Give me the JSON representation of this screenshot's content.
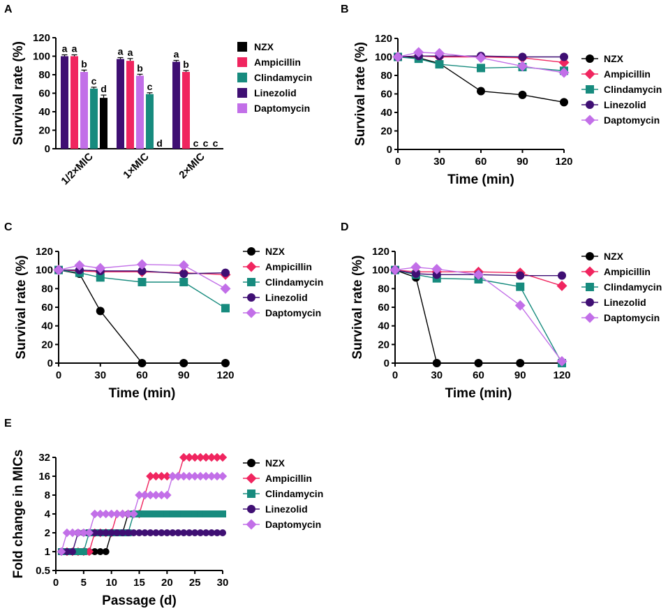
{
  "colors": {
    "NZX": "#000000",
    "Ampicillin": "#f0255f",
    "Clindamycin": "#178b7e",
    "Linezolid": "#3f0f73",
    "Daptomycin": "#c26fe8"
  },
  "chart_data": [
    {
      "id": "A",
      "panel_label": "A",
      "type": "bar",
      "title": "",
      "xlabel": "",
      "ylabel": "Survival rate (%)",
      "ylim": [
        0,
        120
      ],
      "yticks": [
        0,
        20,
        40,
        60,
        80,
        100,
        120
      ],
      "categories": [
        "1/2×MIC",
        "1×MIC",
        "2×MIC"
      ],
      "series": [
        {
          "name": "Linezolid",
          "values": [
            100,
            97,
            94
          ],
          "errors": [
            1.5,
            1.5,
            1.5
          ],
          "letters": [
            "a",
            "a",
            "a"
          ]
        },
        {
          "name": "Ampicillin",
          "values": [
            100,
            95,
            83
          ],
          "errors": [
            1.5,
            2.5,
            1.5
          ],
          "letters": [
            "a",
            "a",
            "b"
          ]
        },
        {
          "name": "Daptomycin",
          "values": [
            83,
            79,
            0
          ],
          "errors": [
            2,
            1.5,
            0
          ],
          "letters": [
            "b",
            "b",
            "c"
          ]
        },
        {
          "name": "Clindamycin",
          "values": [
            65,
            59,
            0
          ],
          "errors": [
            1.5,
            1.5,
            0
          ],
          "letters": [
            "c",
            "c",
            "c"
          ]
        },
        {
          "name": "NZX",
          "values": [
            55,
            0,
            0
          ],
          "errors": [
            3,
            0,
            0
          ],
          "letters": [
            "d",
            "d",
            "c"
          ]
        }
      ],
      "legend": [
        "NZX",
        "Ampicillin",
        "Clindamycin",
        "Linezolid",
        "Daptomycin"
      ]
    },
    {
      "id": "B",
      "panel_label": "B",
      "type": "line",
      "xlabel": "Time (min)",
      "ylabel": "Survival rate (%)",
      "xlim": [
        0,
        120
      ],
      "ylim": [
        0,
        120
      ],
      "xticks": [
        0,
        30,
        60,
        90,
        120
      ],
      "yticks": [
        0,
        20,
        40,
        60,
        80,
        100,
        120
      ],
      "x": [
        0,
        15,
        30,
        60,
        90,
        120
      ],
      "series": [
        {
          "name": "NZX",
          "values": [
            100,
            99,
            93,
            63,
            59,
            51
          ]
        },
        {
          "name": "Ampicillin",
          "values": [
            100,
            101,
            100,
            100,
            99,
            94
          ]
        },
        {
          "name": "Clindamycin",
          "values": [
            100,
            98,
            92,
            88,
            89,
            85
          ]
        },
        {
          "name": "Linezolid",
          "values": [
            100,
            101,
            101,
            101,
            100,
            100
          ]
        },
        {
          "name": "Daptomycin",
          "values": [
            100,
            105,
            104,
            99,
            90,
            83
          ]
        }
      ]
    },
    {
      "id": "C",
      "panel_label": "C",
      "type": "line",
      "xlabel": "Time (min)",
      "ylabel": "Survival rate (%)",
      "xlim": [
        0,
        120
      ],
      "ylim": [
        0,
        120
      ],
      "xticks": [
        0,
        30,
        60,
        90,
        120
      ],
      "yticks": [
        0,
        20,
        40,
        60,
        80,
        100,
        120
      ],
      "x": [
        0,
        15,
        30,
        60,
        90,
        120
      ],
      "series": [
        {
          "name": "NZX",
          "values": [
            100,
            96,
            56,
            0,
            0,
            0
          ]
        },
        {
          "name": "Ampicillin",
          "values": [
            100,
            99,
            98,
            98,
            97,
            95
          ]
        },
        {
          "name": "Clindamycin",
          "values": [
            100,
            97,
            92,
            87,
            87,
            59
          ]
        },
        {
          "name": "Linezolid",
          "values": [
            100,
            100,
            99,
            99,
            96,
            97
          ]
        },
        {
          "name": "Daptomycin",
          "values": [
            100,
            105,
            102,
            106,
            105,
            80
          ]
        }
      ]
    },
    {
      "id": "D",
      "panel_label": "D",
      "type": "line",
      "xlabel": "Time (min)",
      "ylabel": "Survival rate (%)",
      "xlim": [
        0,
        120
      ],
      "ylim": [
        0,
        120
      ],
      "xticks": [
        0,
        30,
        60,
        90,
        120
      ],
      "yticks": [
        0,
        20,
        40,
        60,
        80,
        100,
        120
      ],
      "x": [
        0,
        15,
        30,
        60,
        90,
        120
      ],
      "series": [
        {
          "name": "NZX",
          "values": [
            100,
            92,
            0,
            0,
            0,
            0
          ]
        },
        {
          "name": "Ampicillin",
          "values": [
            100,
            98,
            98,
            98,
            97,
            83
          ]
        },
        {
          "name": "Clindamycin",
          "values": [
            100,
            95,
            91,
            90,
            82,
            0
          ]
        },
        {
          "name": "Linezolid",
          "values": [
            100,
            96,
            95,
            95,
            94,
            94
          ]
        },
        {
          "name": "Daptomycin",
          "values": [
            100,
            103,
            101,
            95,
            62,
            2
          ]
        }
      ]
    },
    {
      "id": "E",
      "panel_label": "E",
      "type": "line",
      "yscale": "log2",
      "xlabel": "Passage (d)",
      "ylabel": "Fold change in MICs",
      "xlim": [
        0,
        30
      ],
      "ylim": [
        0.5,
        32
      ],
      "xticks": [
        0,
        5,
        10,
        15,
        20,
        25,
        30
      ],
      "yticks": [
        0.5,
        1,
        2,
        4,
        8,
        16,
        32
      ],
      "x": [
        1,
        2,
        3,
        4,
        5,
        6,
        7,
        8,
        9,
        10,
        11,
        12,
        13,
        14,
        15,
        16,
        17,
        18,
        19,
        20,
        21,
        22,
        23,
        24,
        25,
        26,
        27,
        28,
        29,
        30
      ],
      "series": [
        {
          "name": "NZX",
          "values": [
            1,
            1,
            1,
            1,
            1,
            1,
            1,
            1,
            1,
            2,
            2,
            2,
            4,
            4,
            4,
            4,
            4,
            4,
            4,
            4,
            4,
            4,
            4,
            4,
            4,
            4,
            4,
            4,
            4,
            4
          ]
        },
        {
          "name": "Ampicillin",
          "values": [
            1,
            1,
            1,
            1,
            1,
            1,
            2,
            2,
            2,
            2,
            4,
            4,
            4,
            4,
            4,
            8,
            16,
            16,
            16,
            16,
            16,
            16,
            32,
            32,
            32,
            32,
            32,
            32,
            32,
            32
          ]
        },
        {
          "name": "Clindamycin",
          "values": [
            1,
            1,
            1,
            1,
            1,
            2,
            2,
            2,
            2,
            2,
            2,
            2,
            2,
            4,
            4,
            4,
            4,
            4,
            4,
            4,
            4,
            4,
            4,
            4,
            4,
            4,
            4,
            4,
            4,
            4
          ]
        },
        {
          "name": "Linezolid",
          "values": [
            1,
            1,
            1,
            2,
            2,
            2,
            2,
            2,
            2,
            2,
            2,
            2,
            2,
            2,
            2,
            2,
            2,
            2,
            2,
            2,
            2,
            2,
            2,
            2,
            2,
            2,
            2,
            2,
            2,
            2
          ]
        },
        {
          "name": "Daptomycin",
          "values": [
            1,
            2,
            2,
            2,
            2,
            2,
            4,
            4,
            4,
            4,
            4,
            4,
            4,
            4,
            8,
            8,
            8,
            8,
            8,
            8,
            16,
            16,
            16,
            16,
            16,
            16,
            16,
            16,
            16,
            16
          ]
        }
      ]
    }
  ]
}
